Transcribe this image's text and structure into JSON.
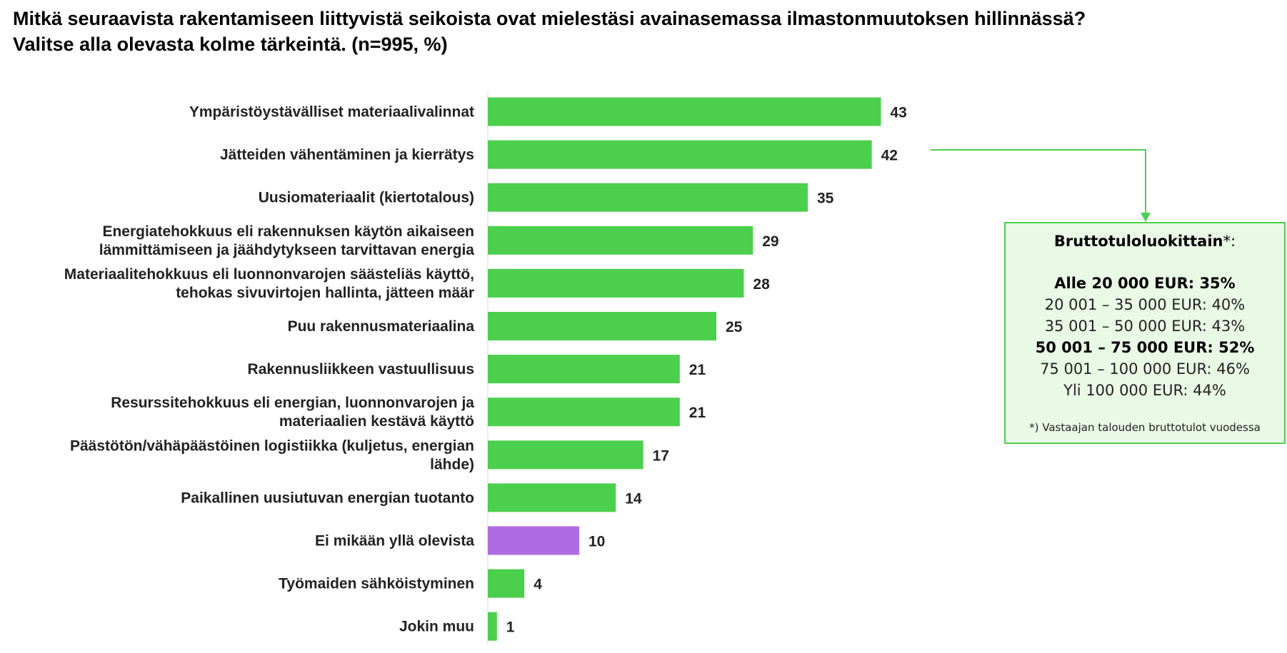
{
  "title_line1": "Mitkä seuraavista rakentamiseen liittyvistä seikoista ovat mielestäsi avainasemassa ilmastonmuutoksen hillinnässä?",
  "title_line2": "Valitse alla olevasta kolme tärkeintä. (n=995, %)",
  "colors": {
    "bar": "#4ccf4c",
    "highlight": "#b06be3",
    "box_border": "#4ccf4c",
    "box_bg": "#e9f9e6"
  },
  "chart_data": {
    "type": "bar",
    "orientation": "horizontal",
    "categories": [
      [
        "Ympäristöystävälliset materiaalivalinnat"
      ],
      [
        "Jätteiden vähentäminen ja kierrätys"
      ],
      [
        "Uusiomateriaalit (kiertotalous)"
      ],
      [
        "Energiatehokkuus eli rakennuksen käytön aikaiseen",
        "lämmittämiseen ja jäähdytykseen tarvittavan energia"
      ],
      [
        "Materiaalitehokkuus eli luonnonvarojen säästeliäs käyttö,",
        "tehokas sivuvirtojen hallinta, jätteen määr"
      ],
      [
        "Puu rakennusmateriaalina"
      ],
      [
        "Rakennusliikkeen vastuullisuus"
      ],
      [
        "Resurssitehokkuus eli energian, luonnonvarojen ja",
        "materiaalien kestävä käyttö"
      ],
      [
        "Päästötön/vähäpäästöinen logistiikka (kuljetus, energian",
        "lähde)"
      ],
      [
        "Paikallinen uusiutuvan energian tuotanto"
      ],
      [
        "Ei mikään yllä olevista"
      ],
      [
        "Työmaiden sähköistyminen"
      ],
      [
        "Jokin muu"
      ]
    ],
    "values": [
      43,
      42,
      35,
      29,
      28,
      25,
      21,
      21,
      17,
      14,
      10,
      4,
      1
    ],
    "highlight_index": 10,
    "unit": "%",
    "xlim": [
      0,
      100
    ]
  },
  "income_box": {
    "title_bold": "Bruttotuloluokittain",
    "title_suffix": "*:",
    "rows": [
      {
        "text": "Alle 20 000 EUR: 35%",
        "bold": true
      },
      {
        "text": "20 001 – 35 000 EUR: 40%",
        "bold": false
      },
      {
        "text": "35 001 – 50 000 EUR: 43%",
        "bold": false
      },
      {
        "text": "50 001 – 75 000 EUR: 52%",
        "bold": true
      },
      {
        "text": "75 001 – 100 000 EUR: 46%",
        "bold": false
      },
      {
        "text": "Yli 100 000 EUR: 44%",
        "bold": false
      }
    ],
    "footnote": "*) Vastaajan talouden bruttotulot vuodessa"
  }
}
